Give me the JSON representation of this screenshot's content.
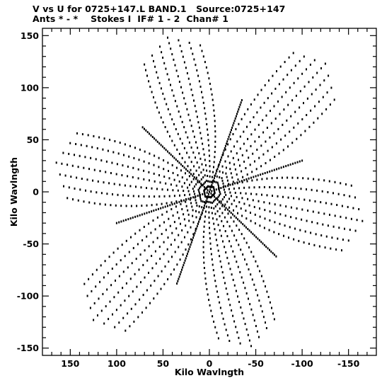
{
  "title_line1": "V vs U for 0725+147.L BAND.1   Source:0725+147",
  "title_line2": "Ants * - *    Stokes I  IF# 1 - 2  Chan# 1",
  "chart_data": {
    "type": "scatter",
    "title": "V vs U for 0725+147.L BAND.1   Source:0725+147",
    "subtitle": "Ants * - *    Stokes I  IF# 1 - 2  Chan# 1",
    "xlabel": "Kilo Wavlngth",
    "ylabel": "Kilo Wavlngth",
    "xlim": [
      180,
      -180
    ],
    "ylim": [
      -157,
      157
    ],
    "x_ticks": [
      150,
      100,
      50,
      0,
      -50,
      -100,
      -150
    ],
    "y_ticks": [
      150,
      100,
      50,
      0,
      -50,
      -100,
      -150
    ],
    "x_tick_labels": [
      "150",
      "100",
      "50",
      "0",
      "-50",
      "-100",
      "-150"
    ],
    "y_tick_labels": [
      "150",
      "100",
      "50",
      "0",
      "-50",
      "-100",
      "-150"
    ],
    "grid": false,
    "series": [
      {
        "description_free": true,
        "arm_tips": [
          {
            "u": -165,
            "v": -28
          },
          {
            "u": 165,
            "v": 28
          },
          {
            "u": -125,
            "v": 123
          },
          {
            "u": 125,
            "v": -123
          },
          {
            "u": 45,
            "v": 148
          },
          {
            "u": -45,
            "v": -148
          }
        ],
        "dense_tracks": [
          {
            "u1": 0,
            "v1": 0,
            "u2": -100,
            "v2": 30
          },
          {
            "u1": 0,
            "v1": 0,
            "u2": 100,
            "v2": -30
          },
          {
            "u1": 0,
            "v1": 0,
            "u2": -35,
            "v2": 88
          },
          {
            "u1": 0,
            "v1": 0,
            "u2": 35,
            "v2": -88
          },
          {
            "u1": 0,
            "v1": 0,
            "u2": 72,
            "v2": 62
          },
          {
            "u1": 0,
            "v1": 0,
            "u2": -72,
            "v2": -62
          }
        ]
      }
    ]
  }
}
